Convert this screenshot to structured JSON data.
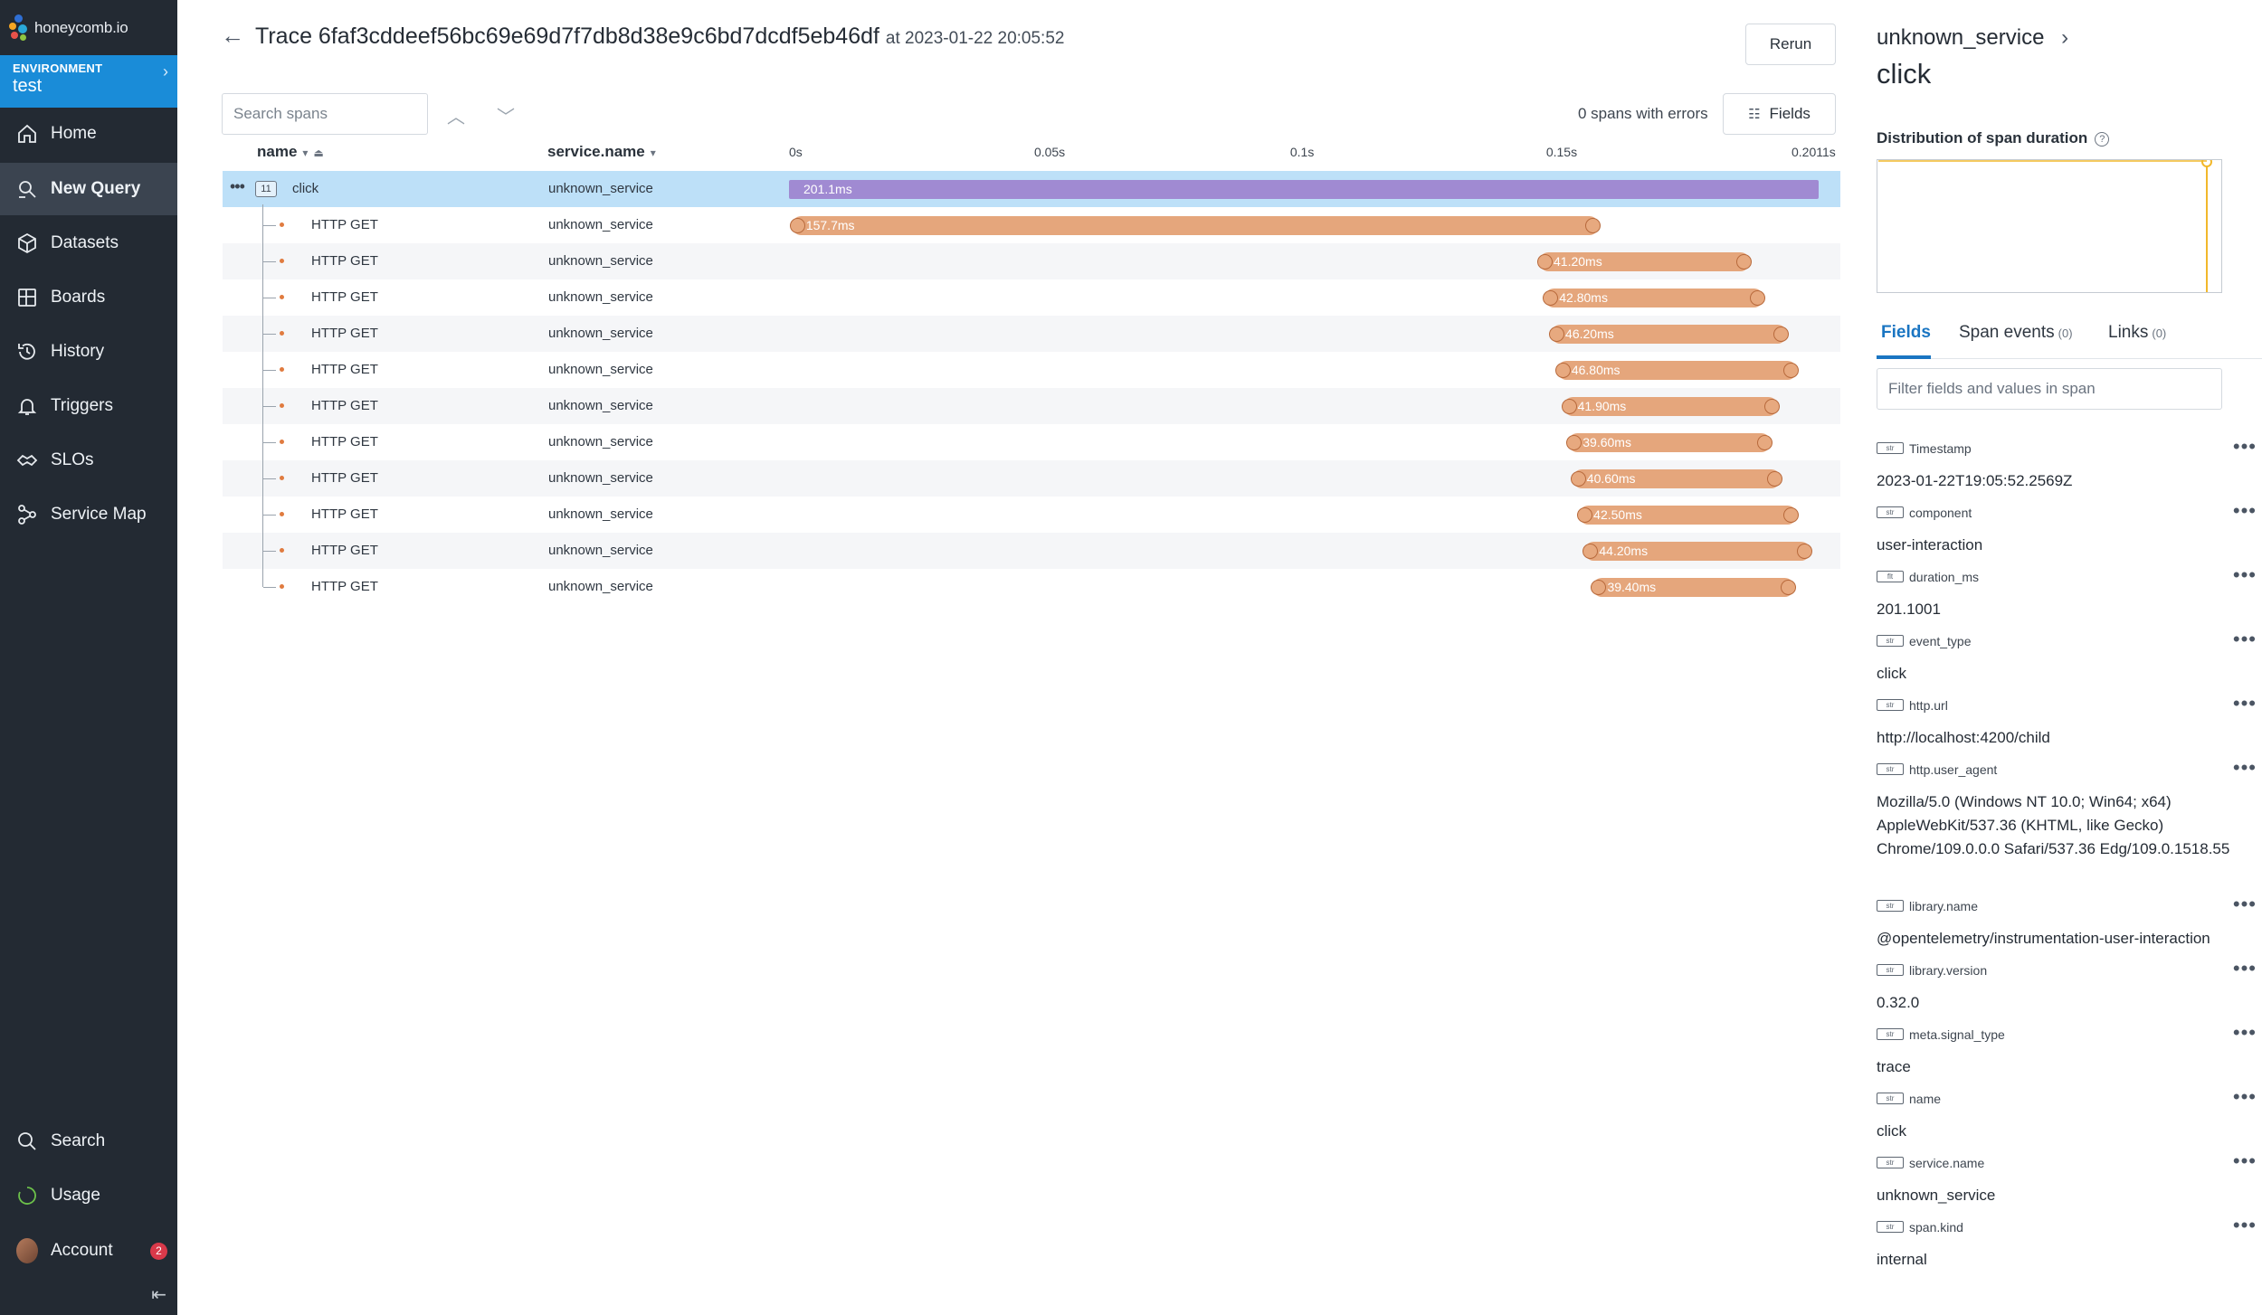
{
  "brand": {
    "name": "honeycomb.io"
  },
  "environment": {
    "label": "ENVIRONMENT",
    "name": "test"
  },
  "nav": [
    {
      "label": "Home",
      "icon": "home-icon"
    },
    {
      "label": "New Query",
      "icon": "new-query-icon",
      "active": true
    },
    {
      "label": "Datasets",
      "icon": "datasets-icon"
    },
    {
      "label": "Boards",
      "icon": "boards-icon"
    },
    {
      "label": "History",
      "icon": "history-icon"
    },
    {
      "label": "Triggers",
      "icon": "triggers-icon"
    },
    {
      "label": "SLOs",
      "icon": "slos-icon"
    },
    {
      "label": "Service Map",
      "icon": "service-map-icon"
    }
  ],
  "nav_bottom": [
    {
      "label": "Search",
      "icon": "search-icon"
    },
    {
      "label": "Usage",
      "icon": "usage-icon"
    },
    {
      "label": "Account",
      "icon": "avatar",
      "badge": "2"
    }
  ],
  "header": {
    "title": "Trace 6faf3cddeef56bc69e69d7f7db8d38e9c6bd7dcdf5eb46df",
    "at": "at 2023-01-22 20:05:52",
    "rerun_label": "Rerun",
    "search_placeholder": "Search spans",
    "errors_text": "0 spans with errors",
    "fields_label": "Fields"
  },
  "table": {
    "col_name": "name",
    "col_service": "service.name",
    "ticks": [
      "0s",
      "0.05s",
      "0.1s",
      "0.15s",
      "0.2011s"
    ],
    "root": {
      "name": "click",
      "service": "unknown_service",
      "duration_label": "201.1ms",
      "child_count": "11",
      "start_ms": 0,
      "duration_ms": 201.1
    },
    "spans": [
      {
        "name": "HTTP GET",
        "service": "unknown_service",
        "duration_label": "157.7ms",
        "start_ms": 0.5,
        "duration_ms": 157.7
      },
      {
        "name": "HTTP GET",
        "service": "unknown_service",
        "duration_label": "41.20ms",
        "start_ms": 146.5,
        "duration_ms": 41.2
      },
      {
        "name": "HTTP GET",
        "service": "unknown_service",
        "duration_label": "42.80ms",
        "start_ms": 147.6,
        "duration_ms": 42.8
      },
      {
        "name": "HTTP GET",
        "service": "unknown_service",
        "duration_label": "46.20ms",
        "start_ms": 148.8,
        "duration_ms": 46.2
      },
      {
        "name": "HTTP GET",
        "service": "unknown_service",
        "duration_label": "46.80ms",
        "start_ms": 150.0,
        "duration_ms": 46.8
      },
      {
        "name": "HTTP GET",
        "service": "unknown_service",
        "duration_label": "41.90ms",
        "start_ms": 151.2,
        "duration_ms": 41.9
      },
      {
        "name": "HTTP GET",
        "service": "unknown_service",
        "duration_label": "39.60ms",
        "start_ms": 152.2,
        "duration_ms": 39.6
      },
      {
        "name": "HTTP GET",
        "service": "unknown_service",
        "duration_label": "40.60ms",
        "start_ms": 153.0,
        "duration_ms": 40.6
      },
      {
        "name": "HTTP GET",
        "service": "unknown_service",
        "duration_label": "42.50ms",
        "start_ms": 154.3,
        "duration_ms": 42.5
      },
      {
        "name": "HTTP GET",
        "service": "unknown_service",
        "duration_label": "44.20ms",
        "start_ms": 155.4,
        "duration_ms": 44.2
      },
      {
        "name": "HTTP GET",
        "service": "unknown_service",
        "duration_label": "39.40ms",
        "start_ms": 157.0,
        "duration_ms": 39.4
      }
    ]
  },
  "panel": {
    "service": "unknown_service",
    "span_name": "click",
    "dist_title": "Distribution of span duration",
    "tabs": [
      {
        "label": "Fields",
        "count": "",
        "active": true
      },
      {
        "label": "Span events",
        "count": "(0)"
      },
      {
        "label": "Links",
        "count": "(0)"
      }
    ],
    "filter_placeholder": "Filter fields and values in span",
    "fields": [
      {
        "type": "str",
        "name": "Timestamp",
        "value": "2023-01-22T19:05:52.2569Z"
      },
      {
        "type": "str",
        "name": "component",
        "value": "user-interaction"
      },
      {
        "type": "flt",
        "name": "duration_ms",
        "value": "201.1001"
      },
      {
        "type": "str",
        "name": "event_type",
        "value": "click"
      },
      {
        "type": "str",
        "name": "http.url",
        "value": "http://localhost:4200/child"
      },
      {
        "type": "str",
        "name": "http.user_agent",
        "value": "Mozilla/5.0 (Windows NT 10.0; Win64; x64) AppleWebKit/537.36 (KHTML, like Gecko) Chrome/109.0.0.0 Safari/537.36 Edg/109.0.1518.55"
      },
      {
        "type": "str",
        "name": "library.name",
        "value": "@opentelemetry/instrumentation-user-interaction"
      },
      {
        "type": "str",
        "name": "library.version",
        "value": "0.32.0"
      },
      {
        "type": "str",
        "name": "meta.signal_type",
        "value": "trace"
      },
      {
        "type": "str",
        "name": "name",
        "value": "click"
      },
      {
        "type": "str",
        "name": "service.name",
        "value": "unknown_service"
      },
      {
        "type": "str",
        "name": "span.kind",
        "value": "internal"
      }
    ]
  },
  "colors": {
    "accent": "#1a8cd8",
    "root_bar": "#a08ad2",
    "span_bar": "#e5a67c",
    "selected_row": "#bde0f8",
    "sidebar": "#232a33"
  }
}
